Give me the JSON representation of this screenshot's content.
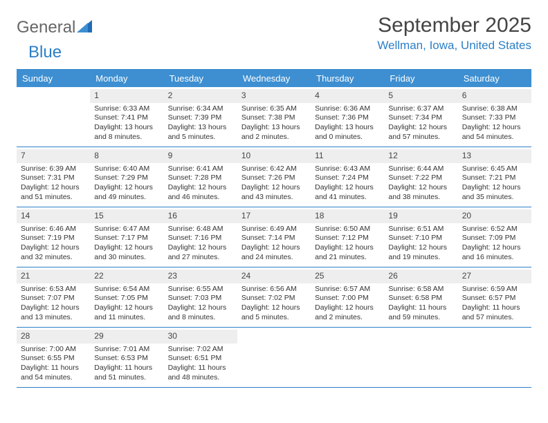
{
  "logo": {
    "word1": "General",
    "word2": "Blue"
  },
  "header": {
    "month": "September 2025",
    "location": "Wellman, Iowa, United States"
  },
  "colors": {
    "accent": "#3d8fd1",
    "border": "#2b7fc7",
    "daynum_bg": "#eeeeee"
  },
  "daysOfWeek": [
    "Sunday",
    "Monday",
    "Tuesday",
    "Wednesday",
    "Thursday",
    "Friday",
    "Saturday"
  ],
  "weeks": [
    [
      {
        "num": "",
        "sunrise": "",
        "sunset": "",
        "daylight1": "",
        "daylight2": ""
      },
      {
        "num": "1",
        "sunrise": "Sunrise: 6:33 AM",
        "sunset": "Sunset: 7:41 PM",
        "daylight1": "Daylight: 13 hours",
        "daylight2": "and 8 minutes."
      },
      {
        "num": "2",
        "sunrise": "Sunrise: 6:34 AM",
        "sunset": "Sunset: 7:39 PM",
        "daylight1": "Daylight: 13 hours",
        "daylight2": "and 5 minutes."
      },
      {
        "num": "3",
        "sunrise": "Sunrise: 6:35 AM",
        "sunset": "Sunset: 7:38 PM",
        "daylight1": "Daylight: 13 hours",
        "daylight2": "and 2 minutes."
      },
      {
        "num": "4",
        "sunrise": "Sunrise: 6:36 AM",
        "sunset": "Sunset: 7:36 PM",
        "daylight1": "Daylight: 13 hours",
        "daylight2": "and 0 minutes."
      },
      {
        "num": "5",
        "sunrise": "Sunrise: 6:37 AM",
        "sunset": "Sunset: 7:34 PM",
        "daylight1": "Daylight: 12 hours",
        "daylight2": "and 57 minutes."
      },
      {
        "num": "6",
        "sunrise": "Sunrise: 6:38 AM",
        "sunset": "Sunset: 7:33 PM",
        "daylight1": "Daylight: 12 hours",
        "daylight2": "and 54 minutes."
      }
    ],
    [
      {
        "num": "7",
        "sunrise": "Sunrise: 6:39 AM",
        "sunset": "Sunset: 7:31 PM",
        "daylight1": "Daylight: 12 hours",
        "daylight2": "and 51 minutes."
      },
      {
        "num": "8",
        "sunrise": "Sunrise: 6:40 AM",
        "sunset": "Sunset: 7:29 PM",
        "daylight1": "Daylight: 12 hours",
        "daylight2": "and 49 minutes."
      },
      {
        "num": "9",
        "sunrise": "Sunrise: 6:41 AM",
        "sunset": "Sunset: 7:28 PM",
        "daylight1": "Daylight: 12 hours",
        "daylight2": "and 46 minutes."
      },
      {
        "num": "10",
        "sunrise": "Sunrise: 6:42 AM",
        "sunset": "Sunset: 7:26 PM",
        "daylight1": "Daylight: 12 hours",
        "daylight2": "and 43 minutes."
      },
      {
        "num": "11",
        "sunrise": "Sunrise: 6:43 AM",
        "sunset": "Sunset: 7:24 PM",
        "daylight1": "Daylight: 12 hours",
        "daylight2": "and 41 minutes."
      },
      {
        "num": "12",
        "sunrise": "Sunrise: 6:44 AM",
        "sunset": "Sunset: 7:22 PM",
        "daylight1": "Daylight: 12 hours",
        "daylight2": "and 38 minutes."
      },
      {
        "num": "13",
        "sunrise": "Sunrise: 6:45 AM",
        "sunset": "Sunset: 7:21 PM",
        "daylight1": "Daylight: 12 hours",
        "daylight2": "and 35 minutes."
      }
    ],
    [
      {
        "num": "14",
        "sunrise": "Sunrise: 6:46 AM",
        "sunset": "Sunset: 7:19 PM",
        "daylight1": "Daylight: 12 hours",
        "daylight2": "and 32 minutes."
      },
      {
        "num": "15",
        "sunrise": "Sunrise: 6:47 AM",
        "sunset": "Sunset: 7:17 PM",
        "daylight1": "Daylight: 12 hours",
        "daylight2": "and 30 minutes."
      },
      {
        "num": "16",
        "sunrise": "Sunrise: 6:48 AM",
        "sunset": "Sunset: 7:16 PM",
        "daylight1": "Daylight: 12 hours",
        "daylight2": "and 27 minutes."
      },
      {
        "num": "17",
        "sunrise": "Sunrise: 6:49 AM",
        "sunset": "Sunset: 7:14 PM",
        "daylight1": "Daylight: 12 hours",
        "daylight2": "and 24 minutes."
      },
      {
        "num": "18",
        "sunrise": "Sunrise: 6:50 AM",
        "sunset": "Sunset: 7:12 PM",
        "daylight1": "Daylight: 12 hours",
        "daylight2": "and 21 minutes."
      },
      {
        "num": "19",
        "sunrise": "Sunrise: 6:51 AM",
        "sunset": "Sunset: 7:10 PM",
        "daylight1": "Daylight: 12 hours",
        "daylight2": "and 19 minutes."
      },
      {
        "num": "20",
        "sunrise": "Sunrise: 6:52 AM",
        "sunset": "Sunset: 7:09 PM",
        "daylight1": "Daylight: 12 hours",
        "daylight2": "and 16 minutes."
      }
    ],
    [
      {
        "num": "21",
        "sunrise": "Sunrise: 6:53 AM",
        "sunset": "Sunset: 7:07 PM",
        "daylight1": "Daylight: 12 hours",
        "daylight2": "and 13 minutes."
      },
      {
        "num": "22",
        "sunrise": "Sunrise: 6:54 AM",
        "sunset": "Sunset: 7:05 PM",
        "daylight1": "Daylight: 12 hours",
        "daylight2": "and 11 minutes."
      },
      {
        "num": "23",
        "sunrise": "Sunrise: 6:55 AM",
        "sunset": "Sunset: 7:03 PM",
        "daylight1": "Daylight: 12 hours",
        "daylight2": "and 8 minutes."
      },
      {
        "num": "24",
        "sunrise": "Sunrise: 6:56 AM",
        "sunset": "Sunset: 7:02 PM",
        "daylight1": "Daylight: 12 hours",
        "daylight2": "and 5 minutes."
      },
      {
        "num": "25",
        "sunrise": "Sunrise: 6:57 AM",
        "sunset": "Sunset: 7:00 PM",
        "daylight1": "Daylight: 12 hours",
        "daylight2": "and 2 minutes."
      },
      {
        "num": "26",
        "sunrise": "Sunrise: 6:58 AM",
        "sunset": "Sunset: 6:58 PM",
        "daylight1": "Daylight: 11 hours",
        "daylight2": "and 59 minutes."
      },
      {
        "num": "27",
        "sunrise": "Sunrise: 6:59 AM",
        "sunset": "Sunset: 6:57 PM",
        "daylight1": "Daylight: 11 hours",
        "daylight2": "and 57 minutes."
      }
    ],
    [
      {
        "num": "28",
        "sunrise": "Sunrise: 7:00 AM",
        "sunset": "Sunset: 6:55 PM",
        "daylight1": "Daylight: 11 hours",
        "daylight2": "and 54 minutes."
      },
      {
        "num": "29",
        "sunrise": "Sunrise: 7:01 AM",
        "sunset": "Sunset: 6:53 PM",
        "daylight1": "Daylight: 11 hours",
        "daylight2": "and 51 minutes."
      },
      {
        "num": "30",
        "sunrise": "Sunrise: 7:02 AM",
        "sunset": "Sunset: 6:51 PM",
        "daylight1": "Daylight: 11 hours",
        "daylight2": "and 48 minutes."
      },
      {
        "num": "",
        "sunrise": "",
        "sunset": "",
        "daylight1": "",
        "daylight2": ""
      },
      {
        "num": "",
        "sunrise": "",
        "sunset": "",
        "daylight1": "",
        "daylight2": ""
      },
      {
        "num": "",
        "sunrise": "",
        "sunset": "",
        "daylight1": "",
        "daylight2": ""
      },
      {
        "num": "",
        "sunrise": "",
        "sunset": "",
        "daylight1": "",
        "daylight2": ""
      }
    ]
  ]
}
